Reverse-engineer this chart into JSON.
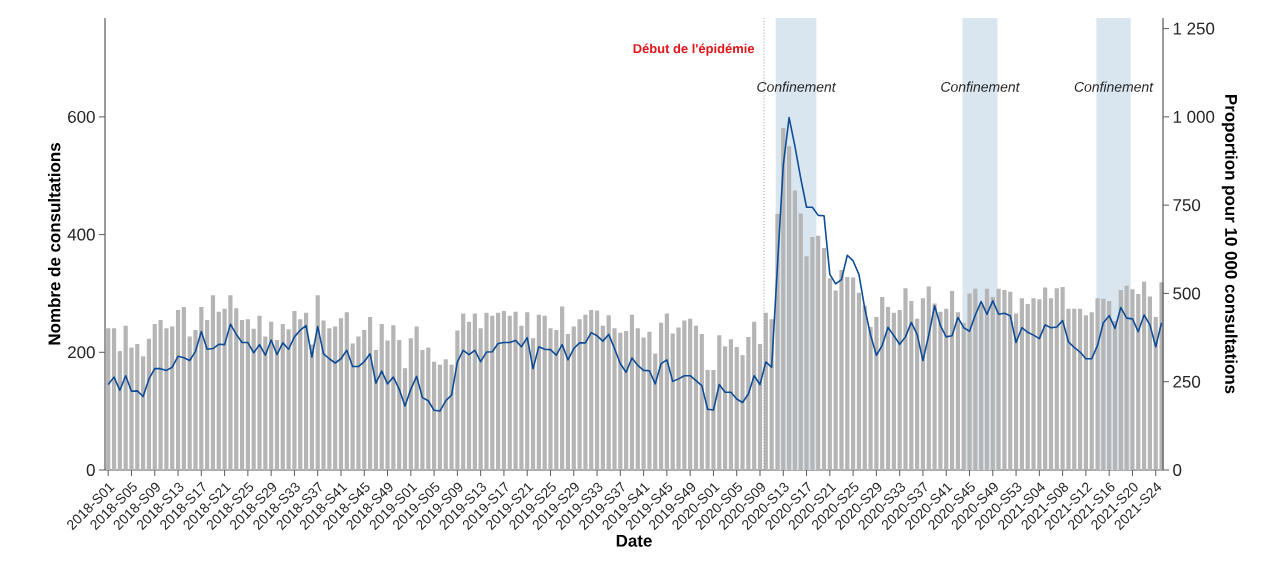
{
  "chart_data": {
    "type": "bar",
    "xlabel": "Date",
    "ylabel": "Nombre de consultations",
    "y2label": "Proportion pour 10 000 consultations",
    "categories": [
      "2018-S01",
      null,
      null,
      null,
      "2018-S05",
      null,
      null,
      null,
      "2018-S09",
      null,
      null,
      null,
      "2018-S13",
      null,
      null,
      null,
      "2018-S17",
      null,
      null,
      null,
      "2018-S21",
      null,
      null,
      null,
      "2018-S25",
      null,
      null,
      null,
      "2018-S29",
      null,
      null,
      null,
      "2018-S33",
      null,
      null,
      null,
      "2018-S37",
      null,
      null,
      null,
      "2018-S41",
      null,
      null,
      null,
      "2018-S45",
      null,
      null,
      null,
      "2018-S49",
      null,
      null,
      null,
      "2019-S01",
      null,
      null,
      null,
      "2019-S05",
      null,
      null,
      null,
      "2019-S09",
      null,
      null,
      null,
      "2019-S13",
      null,
      null,
      null,
      "2019-S17",
      null,
      null,
      null,
      "2019-S21",
      null,
      null,
      null,
      "2019-S25",
      null,
      null,
      null,
      "2019-S29",
      null,
      null,
      null,
      "2019-S33",
      null,
      null,
      null,
      "2019-S37",
      null,
      null,
      null,
      "2019-S41",
      null,
      null,
      null,
      "2019-S45",
      null,
      null,
      null,
      "2019-S49",
      null,
      null,
      null,
      "2020-S01",
      null,
      null,
      null,
      "2020-S05",
      null,
      null,
      null,
      "2020-S09",
      null,
      null,
      null,
      "2020-S13",
      null,
      null,
      null,
      "2020-S17",
      null,
      null,
      null,
      "2020-S21",
      null,
      null,
      null,
      "2020-S25",
      null,
      null,
      null,
      "2020-S29",
      null,
      null,
      null,
      "2020-S33",
      null,
      null,
      null,
      "2020-S37",
      null,
      null,
      null,
      "2020-S41",
      null,
      null,
      null,
      "2020-S45",
      null,
      null,
      null,
      "2020-S49",
      null,
      null,
      null,
      "2020-S53",
      null,
      null,
      null,
      "2021-S04",
      null,
      null,
      null,
      "2021-S08",
      null,
      null,
      null,
      "2021-S12",
      null,
      null,
      null,
      "2021-S16",
      null,
      null,
      null,
      "2021-S20",
      null,
      null,
      null,
      "2021-S24",
      null
    ],
    "series": [
      {
        "color": "#b5b5b5",
        "values": [
          241,
          241,
          202,
          245,
          208,
          214,
          193,
          223,
          248,
          255,
          241,
          244,
          272,
          277,
          227,
          238,
          277,
          255,
          297,
          269,
          274,
          297,
          275,
          255,
          256,
          240,
          262,
          227,
          252,
          221,
          248,
          239,
          270,
          256,
          267,
          213,
          297,
          254,
          241,
          244,
          258,
          268,
          215,
          227,
          238,
          260,
          204,
          248,
          220,
          246,
          221,
          173,
          224,
          244,
          204,
          208,
          184,
          179,
          188,
          179,
          237,
          266,
          252,
          266,
          241,
          267,
          262,
          267,
          270,
          262,
          269,
          245,
          268,
          224,
          264,
          262,
          241,
          238,
          278,
          231,
          244,
          256,
          264,
          272,
          271,
          245,
          263,
          241,
          233,
          236,
          264,
          241,
          225,
          235,
          198,
          250,
          266,
          232,
          242,
          254,
          257,
          245,
          231,
          170,
          170,
          229,
          210,
          222,
          209,
          195,
          226,
          252,
          214,
          267,
          256,
          435,
          581,
          550,
          475,
          436,
          363,
          396,
          398,
          377,
          326,
          305,
          340,
          328,
          327,
          301,
          279,
          243,
          260,
          294,
          277,
          267,
          272,
          309,
          287,
          257,
          292,
          312,
          283,
          269,
          274,
          304,
          268,
          250,
          300,
          308,
          281,
          308,
          294,
          308,
          306,
          303,
          266,
          292,
          282,
          292,
          290,
          310,
          292,
          309,
          311,
          274,
          274,
          274,
          263,
          268,
          292,
          291,
          287,
          253,
          306,
          313,
          307,
          299,
          320,
          295,
          260,
          319
        ]
      },
      {
        "type": "line",
        "axis": "y2",
        "color": "#0f4c97",
        "values": [
          242,
          263,
          226,
          267,
          223,
          224,
          208,
          258,
          287,
          287,
          282,
          291,
          322,
          318,
          310,
          336,
          392,
          342,
          344,
          356,
          355,
          413,
          384,
          361,
          361,
          332,
          355,
          325,
          368,
          327,
          360,
          342,
          377,
          396,
          409,
          320,
          406,
          329,
          315,
          303,
          315,
          339,
          293,
          293,
          307,
          329,
          246,
          280,
          244,
          263,
          229,
          181,
          229,
          265,
          205,
          196,
          169,
          167,
          196,
          212,
          306,
          339,
          327,
          339,
          307,
          334,
          335,
          358,
          361,
          361,
          367,
          349,
          375,
          287,
          349,
          342,
          341,
          325,
          355,
          312,
          344,
          360,
          360,
          389,
          380,
          365,
          384,
          344,
          301,
          277,
          317,
          296,
          282,
          281,
          244,
          301,
          312,
          251,
          258,
          267,
          267,
          253,
          239,
          172,
          170,
          242,
          220,
          220,
          201,
          191,
          215,
          267,
          242,
          306,
          291,
          578,
          864,
          998,
          917,
          826,
          744,
          744,
          721,
          720,
          554,
          527,
          539,
          608,
          592,
          554,
          458,
          382,
          325,
          353,
          404,
          380,
          356,
          377,
          418,
          384,
          310,
          382,
          465,
          409,
          377,
          380,
          432,
          403,
          393,
          439,
          477,
          441,
          479,
          441,
          444,
          437,
          361,
          403,
          390,
          382,
          372,
          411,
          403,
          405,
          423,
          363,
          347,
          334,
          315,
          315,
          353,
          417,
          437,
          401,
          460,
          430,
          428,
          392,
          439,
          411,
          349,
          417
        ]
      }
    ],
    "ylim": [
      0,
      768
    ],
    "yticks": [
      0,
      200,
      400,
      600
    ],
    "y2lim": [
      0,
      1280
    ],
    "y2ticks": [
      0,
      250,
      500,
      750,
      {
        "value": 1000,
        "label": "1 000"
      },
      {
        "value": 1250,
        "label": "1 250"
      }
    ],
    "annotations": [
      "Début de l'épidémie",
      "Confinement",
      "Confinement",
      "Confinement"
    ],
    "grid": false
  }
}
